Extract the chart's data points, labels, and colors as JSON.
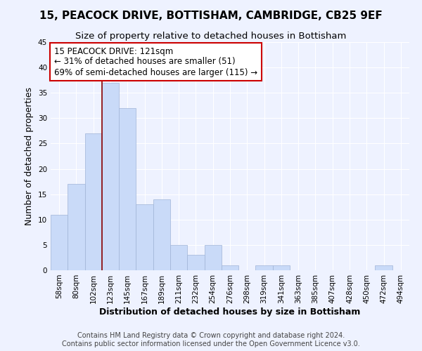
{
  "title": "15, PEACOCK DRIVE, BOTTISHAM, CAMBRIDGE, CB25 9EF",
  "subtitle": "Size of property relative to detached houses in Bottisham",
  "xlabel": "Distribution of detached houses by size in Bottisham",
  "ylabel": "Number of detached properties",
  "bins": [
    "58sqm",
    "80sqm",
    "102sqm",
    "123sqm",
    "145sqm",
    "167sqm",
    "189sqm",
    "211sqm",
    "232sqm",
    "254sqm",
    "276sqm",
    "298sqm",
    "319sqm",
    "341sqm",
    "363sqm",
    "385sqm",
    "407sqm",
    "428sqm",
    "450sqm",
    "472sqm",
    "494sqm"
  ],
  "values": [
    11,
    17,
    27,
    37,
    32,
    13,
    14,
    5,
    3,
    5,
    1,
    0,
    1,
    1,
    0,
    0,
    0,
    0,
    0,
    1,
    0
  ],
  "bar_color": "#c9daf8",
  "bar_edge_color": "#a0b4d6",
  "bar_width": 1.0,
  "property_line_x": 2.5,
  "property_line_color": "#8b0000",
  "annotation_text": "15 PEACOCK DRIVE: 121sqm\n← 31% of detached houses are smaller (51)\n69% of semi-detached houses are larger (115) →",
  "annotation_box_color": "#ffffff",
  "annotation_box_edge_color": "#cc0000",
  "ylim": [
    0,
    45
  ],
  "yticks": [
    0,
    5,
    10,
    15,
    20,
    25,
    30,
    35,
    40,
    45
  ],
  "footer_text": "Contains HM Land Registry data © Crown copyright and database right 2024.\nContains public sector information licensed under the Open Government Licence v3.0.",
  "background_color": "#eef2ff",
  "grid_color": "#ffffff",
  "title_fontsize": 11,
  "subtitle_fontsize": 9.5,
  "axis_label_fontsize": 9,
  "tick_fontsize": 7.5,
  "footer_fontsize": 7,
  "annot_fontsize": 8.5
}
